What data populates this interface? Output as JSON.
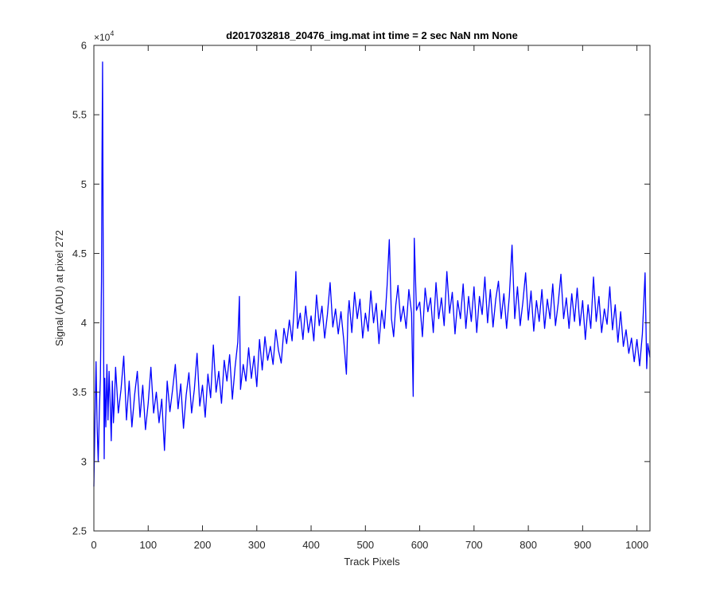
{
  "chart_data": {
    "type": "line",
    "title": "d2017032818_20476_img.mat int time = 2 sec  NaN nm None",
    "xlabel": "Track Pixels",
    "ylabel": "Signal (ADU) at pixel 272",
    "xlim": [
      0,
      1024
    ],
    "ylim": [
      25000,
      60000
    ],
    "x_ticks": [
      0,
      100,
      200,
      300,
      400,
      500,
      600,
      700,
      800,
      900,
      1000
    ],
    "x_tick_labels": [
      "0",
      "100",
      "200",
      "300",
      "400",
      "500",
      "600",
      "700",
      "800",
      "900",
      "1000"
    ],
    "y_ticks": [
      25000,
      30000,
      35000,
      40000,
      45000,
      50000,
      55000,
      60000
    ],
    "y_tick_labels": [
      "2.5",
      "3",
      "3.5",
      "4",
      "4.5",
      "5",
      "5.5",
      "6"
    ],
    "y_exponent_base": "×10",
    "y_exponent_power": "4",
    "grid": false,
    "box": true,
    "series": [
      {
        "color": "#0000ff",
        "points": [
          [
            0,
            28200
          ],
          [
            2,
            33000
          ],
          [
            4,
            37200
          ],
          [
            6,
            32500
          ],
          [
            8,
            30000
          ],
          [
            10,
            33500
          ],
          [
            12,
            36000
          ],
          [
            14,
            43000
          ],
          [
            15,
            52000
          ],
          [
            16,
            58800
          ],
          [
            17,
            47000
          ],
          [
            18,
            38000
          ],
          [
            19,
            30200
          ],
          [
            20,
            36000
          ],
          [
            22,
            32500
          ],
          [
            24,
            37000
          ],
          [
            26,
            33000
          ],
          [
            28,
            36500
          ],
          [
            30,
            34200
          ],
          [
            32,
            31500
          ],
          [
            34,
            35800
          ],
          [
            36,
            32800
          ],
          [
            38,
            34500
          ],
          [
            40,
            36800
          ],
          [
            45,
            33500
          ],
          [
            50,
            35200
          ],
          [
            55,
            37600
          ],
          [
            60,
            33000
          ],
          [
            65,
            35800
          ],
          [
            70,
            32500
          ],
          [
            75,
            34800
          ],
          [
            80,
            36500
          ],
          [
            85,
            33200
          ],
          [
            90,
            35500
          ],
          [
            95,
            32300
          ],
          [
            100,
            34200
          ],
          [
            105,
            36800
          ],
          [
            110,
            33500
          ],
          [
            115,
            35000
          ],
          [
            120,
            32800
          ],
          [
            125,
            34500
          ],
          [
            130,
            30800
          ],
          [
            135,
            35800
          ],
          [
            140,
            33600
          ],
          [
            145,
            35200
          ],
          [
            150,
            37000
          ],
          [
            155,
            33800
          ],
          [
            160,
            35600
          ],
          [
            165,
            32400
          ],
          [
            170,
            34800
          ],
          [
            175,
            36400
          ],
          [
            180,
            33500
          ],
          [
            185,
            35200
          ],
          [
            190,
            37800
          ],
          [
            195,
            34000
          ],
          [
            200,
            35500
          ],
          [
            205,
            33200
          ],
          [
            210,
            36300
          ],
          [
            215,
            34600
          ],
          [
            220,
            38400
          ],
          [
            225,
            35000
          ],
          [
            230,
            36500
          ],
          [
            235,
            34200
          ],
          [
            240,
            37300
          ],
          [
            245,
            35800
          ],
          [
            250,
            37700
          ],
          [
            255,
            34500
          ],
          [
            260,
            36800
          ],
          [
            265,
            38600
          ],
          [
            268,
            41900
          ],
          [
            270,
            35200
          ],
          [
            275,
            37000
          ],
          [
            280,
            35800
          ],
          [
            285,
            38200
          ],
          [
            290,
            36000
          ],
          [
            295,
            37600
          ],
          [
            300,
            35400
          ],
          [
            305,
            38800
          ],
          [
            310,
            36600
          ],
          [
            315,
            39000
          ],
          [
            320,
            37300
          ],
          [
            325,
            38300
          ],
          [
            330,
            37000
          ],
          [
            335,
            39500
          ],
          [
            340,
            38000
          ],
          [
            345,
            37100
          ],
          [
            350,
            39600
          ],
          [
            355,
            38500
          ],
          [
            360,
            40200
          ],
          [
            365,
            38700
          ],
          [
            370,
            41800
          ],
          [
            372,
            43700
          ],
          [
            375,
            39600
          ],
          [
            380,
            40700
          ],
          [
            385,
            38800
          ],
          [
            390,
            41200
          ],
          [
            395,
            39300
          ],
          [
            400,
            40500
          ],
          [
            405,
            38700
          ],
          [
            410,
            42000
          ],
          [
            415,
            39800
          ],
          [
            420,
            41200
          ],
          [
            425,
            38900
          ],
          [
            430,
            40600
          ],
          [
            435,
            42900
          ],
          [
            440,
            39700
          ],
          [
            445,
            41000
          ],
          [
            450,
            39200
          ],
          [
            455,
            40800
          ],
          [
            460,
            38800
          ],
          [
            465,
            36300
          ],
          [
            468,
            40600
          ],
          [
            470,
            41600
          ],
          [
            475,
            39300
          ],
          [
            480,
            42200
          ],
          [
            485,
            40300
          ],
          [
            490,
            41700
          ],
          [
            495,
            38900
          ],
          [
            500,
            40700
          ],
          [
            505,
            39400
          ],
          [
            510,
            42300
          ],
          [
            515,
            40000
          ],
          [
            520,
            41400
          ],
          [
            525,
            38500
          ],
          [
            530,
            40900
          ],
          [
            535,
            39600
          ],
          [
            540,
            42700
          ],
          [
            544,
            46000
          ],
          [
            548,
            40300
          ],
          [
            552,
            39000
          ],
          [
            556,
            41300
          ],
          [
            560,
            42700
          ],
          [
            565,
            40100
          ],
          [
            570,
            41200
          ],
          [
            575,
            39600
          ],
          [
            580,
            42400
          ],
          [
            585,
            40700
          ],
          [
            588,
            34700
          ],
          [
            590,
            46100
          ],
          [
            594,
            40900
          ],
          [
            600,
            41500
          ],
          [
            605,
            39000
          ],
          [
            610,
            42500
          ],
          [
            615,
            40800
          ],
          [
            620,
            41800
          ],
          [
            625,
            39300
          ],
          [
            630,
            42900
          ],
          [
            635,
            40300
          ],
          [
            640,
            41800
          ],
          [
            645,
            39800
          ],
          [
            650,
            43700
          ],
          [
            655,
            40700
          ],
          [
            660,
            42200
          ],
          [
            665,
            39200
          ],
          [
            670,
            41600
          ],
          [
            675,
            40300
          ],
          [
            680,
            42800
          ],
          [
            685,
            39600
          ],
          [
            690,
            41900
          ],
          [
            695,
            40100
          ],
          [
            700,
            42600
          ],
          [
            705,
            39300
          ],
          [
            710,
            41900
          ],
          [
            715,
            40600
          ],
          [
            720,
            43300
          ],
          [
            725,
            40000
          ],
          [
            730,
            42400
          ],
          [
            735,
            39700
          ],
          [
            740,
            41700
          ],
          [
            745,
            43000
          ],
          [
            750,
            40300
          ],
          [
            755,
            42100
          ],
          [
            760,
            39600
          ],
          [
            765,
            41900
          ],
          [
            770,
            45600
          ],
          [
            775,
            40300
          ],
          [
            780,
            42600
          ],
          [
            785,
            39800
          ],
          [
            790,
            41500
          ],
          [
            795,
            43600
          ],
          [
            800,
            40200
          ],
          [
            805,
            42300
          ],
          [
            810,
            39400
          ],
          [
            815,
            41600
          ],
          [
            820,
            40100
          ],
          [
            825,
            42400
          ],
          [
            830,
            39600
          ],
          [
            835,
            41700
          ],
          [
            840,
            40300
          ],
          [
            845,
            42800
          ],
          [
            850,
            39800
          ],
          [
            855,
            41400
          ],
          [
            860,
            43500
          ],
          [
            865,
            40300
          ],
          [
            870,
            41800
          ],
          [
            875,
            39600
          ],
          [
            880,
            42100
          ],
          [
            885,
            40100
          ],
          [
            890,
            42500
          ],
          [
            895,
            39800
          ],
          [
            900,
            41600
          ],
          [
            905,
            38800
          ],
          [
            910,
            41300
          ],
          [
            915,
            39600
          ],
          [
            920,
            43300
          ],
          [
            925,
            40100
          ],
          [
            930,
            41900
          ],
          [
            935,
            39300
          ],
          [
            940,
            41000
          ],
          [
            945,
            39900
          ],
          [
            950,
            42600
          ],
          [
            955,
            39500
          ],
          [
            960,
            41300
          ],
          [
            965,
            38600
          ],
          [
            970,
            40800
          ],
          [
            975,
            38300
          ],
          [
            980,
            39500
          ],
          [
            985,
            37800
          ],
          [
            990,
            38900
          ],
          [
            995,
            37200
          ],
          [
            1000,
            38800
          ],
          [
            1005,
            36900
          ],
          [
            1010,
            39200
          ],
          [
            1015,
            43600
          ],
          [
            1018,
            36700
          ],
          [
            1020,
            38500
          ],
          [
            1024,
            37500
          ]
        ]
      }
    ]
  }
}
